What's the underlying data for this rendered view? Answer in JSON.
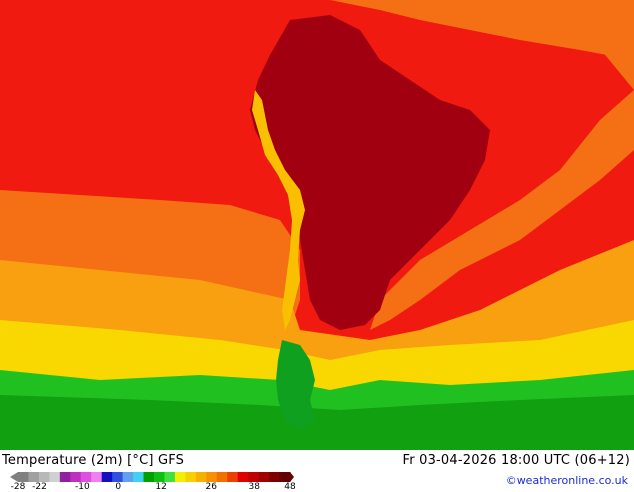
{
  "map": {
    "legend_colors": [
      "#808080",
      "#a0a0a0",
      "#b8b8b8",
      "#d0d0d0",
      "#9020a0",
      "#c030c0",
      "#e050e0",
      "#f080f0",
      "#1010c0",
      "#3050e0",
      "#60a0f0",
      "#40d0f0",
      "#00a000",
      "#10c010",
      "#40e040",
      "#f0f000",
      "#f8d000",
      "#f8b000",
      "#f89000",
      "#f07000",
      "#f04000",
      "#e00000",
      "#c00000",
      "#a00000",
      "#800000",
      "#600000"
    ]
  },
  "footer": {
    "title": "Temperature (2m) [°C] GFS",
    "datetime": "Fr 03-04-2026 18:00 UTC (06+12)",
    "credit": "©weatheronline.co.uk",
    "ticks": [
      {
        "label": "-28",
        "value": -28
      },
      {
        "label": "-22",
        "value": -22
      },
      {
        "label": "-10",
        "value": -10
      },
      {
        "label": "0",
        "value": 0
      },
      {
        "label": "12",
        "value": 12
      },
      {
        "label": "26",
        "value": 26
      },
      {
        "label": "38",
        "value": 38
      },
      {
        "label": "48",
        "value": 48
      }
    ]
  }
}
